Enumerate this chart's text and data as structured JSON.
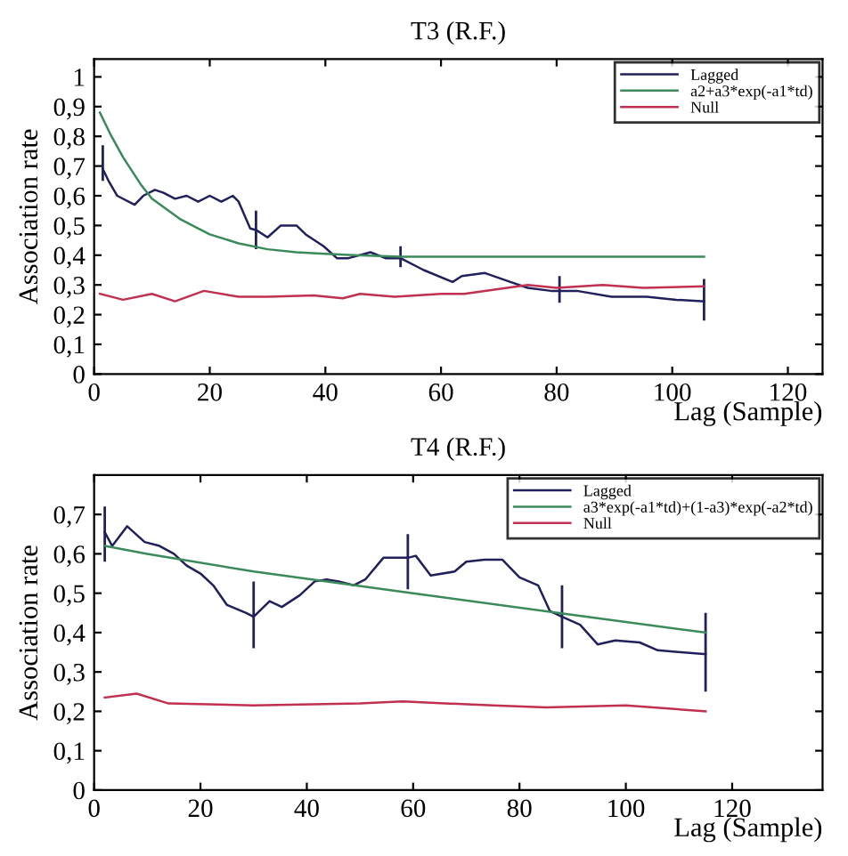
{
  "chart_data": [
    {
      "type": "line",
      "title": "T3 (R.F.)",
      "xlabel": "Lag (Sample)",
      "ylabel": "Association rate",
      "xlim": [
        0,
        126
      ],
      "xticks": [
        0,
        20,
        40,
        60,
        80,
        100,
        120
      ],
      "ylim": [
        0,
        1.06
      ],
      "yticks": [
        0,
        {
          "value": 0.1,
          "label": "0,1"
        },
        {
          "value": 0.2,
          "label": "0,2"
        },
        {
          "value": 0.3,
          "label": "0,3"
        },
        {
          "value": 0.4,
          "label": "0,4"
        },
        {
          "value": 0.5,
          "label": "0,5"
        },
        {
          "value": 0.6,
          "label": "0,6"
        },
        {
          "value": 0.7,
          "label": "0,7"
        },
        {
          "value": 0.8,
          "label": "0,8"
        },
        {
          "value": 0.9,
          "label": "0,9"
        },
        1
      ],
      "legend": "top right",
      "grid": false,
      "marker": "none",
      "line_style": "solid",
      "series": [
        {
          "name": "Lagged",
          "color": "#20205a",
          "x": [
            1.5,
            2.5,
            4,
            7,
            8.5,
            10.5,
            12,
            14,
            16,
            18,
            20,
            22,
            24,
            25,
            27,
            28,
            30,
            32.3,
            35,
            36.6,
            39.7,
            42,
            44,
            47.8,
            50.4,
            53,
            57,
            62,
            63.6,
            67.6,
            72,
            75,
            79,
            80.5,
            83.5,
            89.5,
            95.6,
            100.7,
            105.5
          ],
          "values": [
            0.69,
            0.65,
            0.6,
            0.57,
            0.6,
            0.62,
            0.61,
            0.59,
            0.6,
            0.58,
            0.6,
            0.58,
            0.6,
            0.58,
            0.49,
            0.485,
            0.46,
            0.5,
            0.5,
            0.47,
            0.43,
            0.39,
            0.39,
            0.41,
            0.39,
            0.39,
            0.35,
            0.31,
            0.33,
            0.34,
            0.31,
            0.29,
            0.28,
            0.28,
            0.28,
            0.26,
            0.26,
            0.25,
            0.245
          ],
          "errors": [
            [
              0.65,
              0.77
            ],
            null,
            null,
            null,
            null,
            null,
            null,
            null,
            null,
            null,
            null,
            null,
            null,
            null,
            null,
            [
              0.42,
              0.55
            ],
            null,
            null,
            null,
            null,
            null,
            null,
            null,
            null,
            null,
            [
              0.36,
              0.43
            ],
            null,
            null,
            null,
            null,
            null,
            null,
            null,
            [
              0.24,
              0.33
            ],
            null,
            null,
            null,
            null,
            [
              0.18,
              0.32
            ]
          ]
        },
        {
          "name": "a2+a3*exp(-a1*td)",
          "color": "#3a8a5a",
          "x": [
            1,
            3,
            5,
            8,
            10,
            15,
            20,
            25,
            30,
            35,
            40,
            45,
            53,
            105.5
          ],
          "values": [
            0.88,
            0.8,
            0.73,
            0.64,
            0.59,
            0.52,
            0.47,
            0.44,
            0.42,
            0.41,
            0.405,
            0.4,
            0.395,
            0.395
          ]
        },
        {
          "name": "Null",
          "color": "#c03050",
          "x": [
            1,
            5,
            10,
            14,
            19,
            25,
            30,
            38,
            43,
            46,
            52,
            60,
            64,
            75,
            80,
            88,
            95,
            105.5
          ],
          "values": [
            0.27,
            0.25,
            0.27,
            0.245,
            0.28,
            0.26,
            0.26,
            0.265,
            0.255,
            0.27,
            0.26,
            0.27,
            0.27,
            0.3,
            0.29,
            0.3,
            0.29,
            0.295
          ]
        }
      ]
    },
    {
      "type": "line",
      "title": "T4 (R.F.)",
      "xlabel": "Lag (Sample)",
      "ylabel": "Association rate",
      "xlim": [
        0,
        137
      ],
      "xticks": [
        0,
        20,
        40,
        60,
        80,
        100,
        120
      ],
      "ylim": [
        0,
        0.8
      ],
      "yticks": [
        0,
        {
          "value": 0.1,
          "label": "0,1"
        },
        {
          "value": 0.2,
          "label": "0,2"
        },
        {
          "value": 0.3,
          "label": "0,3"
        },
        {
          "value": 0.4,
          "label": "0,4"
        },
        {
          "value": 0.5,
          "label": "0,5"
        },
        {
          "value": 0.6,
          "label": "0,6"
        },
        {
          "value": 0.7,
          "label": "0,7"
        }
      ],
      "legend": "top right",
      "grid": false,
      "marker": "none",
      "line_style": "solid",
      "series": [
        {
          "name": "Lagged",
          "color": "#20205a",
          "x": [
            2,
            3.4,
            6.2,
            9.5,
            12.3,
            15,
            17.4,
            20,
            22.4,
            25,
            28.6,
            30,
            33,
            35.3,
            38.7,
            41.5,
            43.7,
            46,
            48.8,
            51,
            54.4,
            57.7,
            59,
            60.5,
            63.3,
            67.8,
            70,
            73.4,
            76.8,
            80,
            83.5,
            85.7,
            88,
            91.4,
            94.7,
            98,
            102.6,
            106,
            110.4,
            115
          ],
          "values": [
            0.655,
            0.62,
            0.67,
            0.63,
            0.62,
            0.6,
            0.57,
            0.55,
            0.52,
            0.47,
            0.45,
            0.44,
            0.48,
            0.465,
            0.495,
            0.53,
            0.535,
            0.53,
            0.52,
            0.535,
            0.59,
            0.59,
            0.59,
            0.595,
            0.545,
            0.555,
            0.58,
            0.585,
            0.585,
            0.54,
            0.52,
            0.455,
            0.44,
            0.42,
            0.37,
            0.38,
            0.375,
            0.355,
            0.35,
            0.345
          ],
          "errors": [
            [
              0.58,
              0.72
            ],
            null,
            null,
            null,
            null,
            null,
            null,
            null,
            null,
            null,
            null,
            [
              0.36,
              0.53
            ],
            null,
            null,
            null,
            null,
            null,
            null,
            null,
            null,
            null,
            null,
            [
              0.51,
              0.65
            ],
            null,
            null,
            null,
            null,
            null,
            null,
            null,
            null,
            null,
            [
              0.36,
              0.52
            ],
            null,
            null,
            null,
            null,
            null,
            null,
            [
              0.25,
              0.45
            ]
          ]
        },
        {
          "name": "a3*exp(-a1*td)+(1-a3)*exp(-a2*td)",
          "color": "#3a8a5a",
          "x": [
            2,
            10,
            30,
            60,
            90,
            115
          ],
          "values": [
            0.62,
            0.6,
            0.555,
            0.5,
            0.445,
            0.4
          ]
        },
        {
          "name": "Null",
          "color": "#c03050",
          "x": [
            2,
            8,
            14,
            30,
            50,
            58,
            75,
            85,
            100,
            115
          ],
          "values": [
            0.235,
            0.245,
            0.22,
            0.215,
            0.22,
            0.225,
            0.215,
            0.21,
            0.215,
            0.2
          ]
        }
      ]
    }
  ]
}
